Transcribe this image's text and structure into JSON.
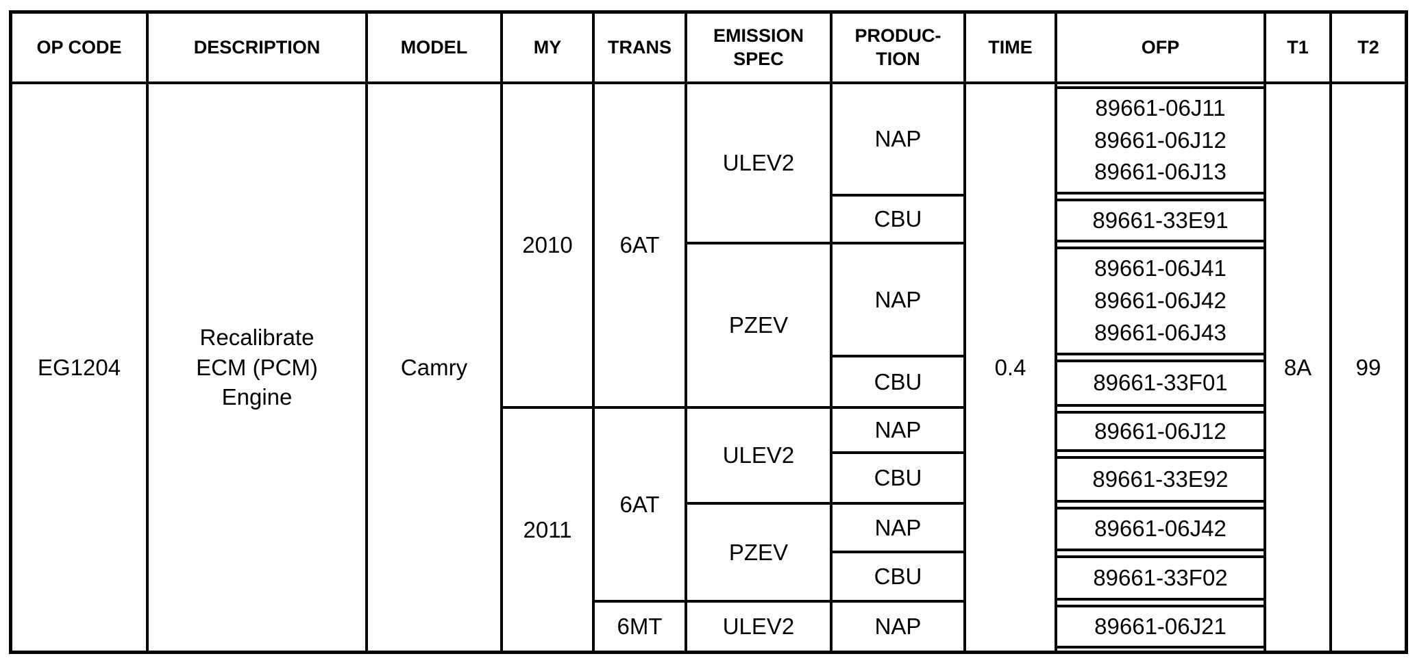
{
  "columns": [
    "OP CODE",
    "DESCRIPTION",
    "MODEL",
    "MY",
    "TRANS",
    "EMISSION SPEC",
    "PRODUC-TION",
    "TIME",
    "OFP",
    "T1",
    "T2"
  ],
  "record": {
    "op_code": "EG1204",
    "description": [
      "Recalibrate",
      "ECM (PCM)",
      "Engine"
    ],
    "model": "Camry",
    "time": "0.4",
    "t1": "8A",
    "t2": "99"
  },
  "rows": [
    {
      "my": "2010",
      "trans": "6AT",
      "emission": "ULEV2",
      "production": "NAP",
      "ofp": [
        "89661-06J11",
        "89661-06J12",
        "89661-06J13"
      ]
    },
    {
      "production": "CBU",
      "ofp": [
        "89661-33E91"
      ]
    },
    {
      "emission": "PZEV",
      "production": "NAP",
      "ofp": [
        "89661-06J41",
        "89661-06J42",
        "89661-06J43"
      ]
    },
    {
      "production": "CBU",
      "ofp": [
        "89661-33F01"
      ]
    },
    {
      "my": "2011",
      "trans": "6AT",
      "emission": "ULEV2",
      "production": "NAP",
      "ofp": [
        "89661-06J12"
      ]
    },
    {
      "production": "CBU",
      "ofp": [
        "89661-33E92"
      ]
    },
    {
      "emission": "PZEV",
      "production": "NAP",
      "ofp": [
        "89661-06J42"
      ]
    },
    {
      "production": "CBU",
      "ofp": [
        "89661-33F02"
      ]
    },
    {
      "trans": "6MT",
      "emission": "ULEV2",
      "production": "NAP",
      "ofp": [
        "89661-06J21"
      ]
    }
  ]
}
